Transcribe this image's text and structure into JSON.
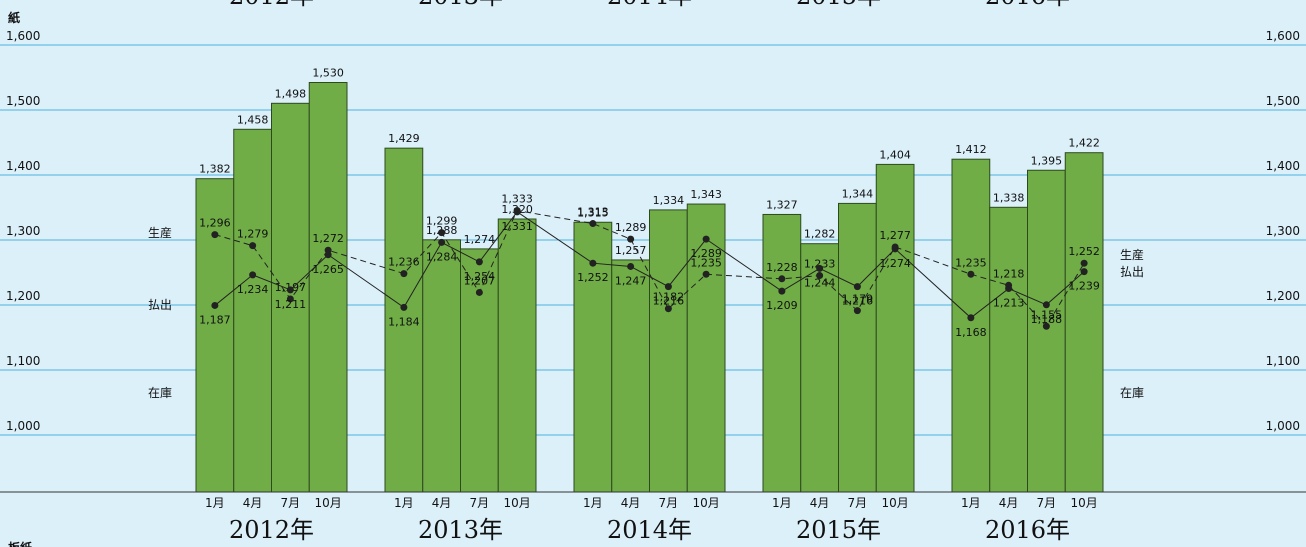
{
  "chart_data": {
    "type": "bar-line",
    "title": "紙",
    "next_title": "板紙",
    "years": [
      "2012年",
      "2013年",
      "2014年",
      "2015年",
      "2016年"
    ],
    "months": [
      "1月",
      "4月",
      "7月",
      "10月"
    ],
    "ylim": [
      900,
      1600
    ],
    "yticks": [
      {
        "value": 1000,
        "label": "1,000"
      },
      {
        "value": 1100,
        "label": "1,100"
      },
      {
        "value": 1200,
        "label": "1,200"
      },
      {
        "value": 1300,
        "label": "1,300"
      },
      {
        "value": 1400,
        "label": "1,400"
      },
      {
        "value": 1500,
        "label": "1,500"
      },
      {
        "value": 1600,
        "label": "1,600"
      }
    ],
    "grid": true,
    "series": [
      {
        "name": "生産",
        "kind": "dashed-line",
        "color": "#222222",
        "values": [
          1296,
          1279,
          1197,
          1272,
          1236,
          1299,
          1207,
          1333,
          1313,
          1289,
          1182,
          1235,
          1228,
          1233,
          1179,
          1277,
          1235,
          1218,
          1155,
          1252
        ],
        "value_labels": [
          "1,296",
          "1,279",
          "1,197",
          "1,272",
          "1,236",
          "1,299",
          "1,207",
          "1,333",
          "1,313",
          "1,289",
          "1,182",
          "1,235",
          "1,228",
          "1,233",
          "1,179",
          "1,277",
          "1,235",
          "1,218",
          "1,155",
          "1,252"
        ]
      },
      {
        "name": "払出",
        "kind": "solid-line",
        "color": "#222222",
        "values": [
          1187,
          1234,
          1211,
          1265,
          1184,
          1284,
          1254,
          1331,
          1252,
          1247,
          1216,
          1289,
          1209,
          1244,
          1216,
          1274,
          1168,
          1213,
          1188,
          1239
        ],
        "value_labels": [
          "1,187",
          "1,234",
          "1,211",
          "1,265",
          "1,184",
          "1,284",
          "1,254",
          "1,331",
          "1,252",
          "1,247",
          "1,216",
          "1,289",
          "1,209",
          "1,244",
          "1,216",
          "1,274",
          "1,168",
          "1,213",
          "1,188",
          "1,239"
        ]
      },
      {
        "name": "在庫",
        "kind": "bar",
        "color": "#70ad47",
        "values": [
          1382,
          1458,
          1498,
          1530,
          1429,
          1288,
          1274,
          1320,
          1315,
          1257,
          1334,
          1343,
          1327,
          1282,
          1344,
          1404,
          1412,
          1338,
          1395,
          1422
        ],
        "value_labels": [
          "1,382",
          "1,458",
          "1,498",
          "1,530",
          "1,429",
          "1,288",
          "1,274",
          "1,320",
          "1,315",
          "1,257",
          "1,334",
          "1,343",
          "1,327",
          "1,282",
          "1,344",
          "1,404",
          "1,412",
          "1,338",
          "1,395",
          "1,422"
        ]
      }
    ]
  }
}
